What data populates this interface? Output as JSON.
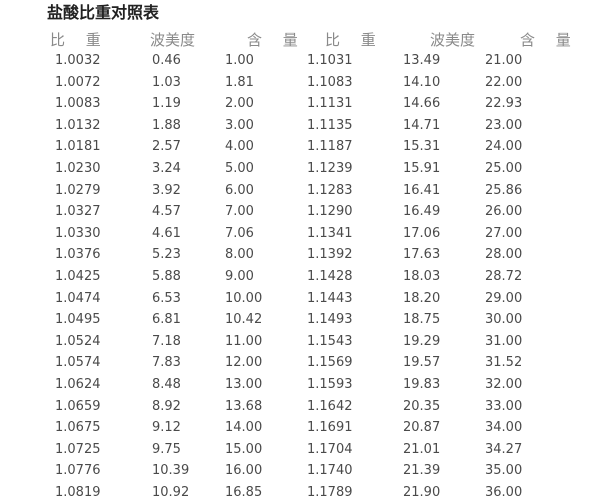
{
  "page": {
    "title": "盐酸比重对照表"
  },
  "table": {
    "headers": [
      "比 重",
      "波美度",
      "含 量",
      "比 重",
      "波美度",
      "含 量"
    ],
    "column_meanings": [
      "specific-gravity",
      "baume-degree",
      "content-percent",
      "specific-gravity",
      "baume-degree",
      "content-percent"
    ],
    "rows": [
      [
        "1.0032",
        "0.46",
        "1.00",
        "1.1031",
        "13.49",
        "21.00"
      ],
      [
        "1.0072",
        "1.03",
        "1.81",
        "1.1083",
        "14.10",
        "22.00"
      ],
      [
        "1.0083",
        "1.19",
        "2.00",
        "1.1131",
        "14.66",
        "22.93"
      ],
      [
        "1.0132",
        "1.88",
        "3.00",
        "1.1135",
        "14.71",
        "23.00"
      ],
      [
        "1.0181",
        "2.57",
        "4.00",
        "1.1187",
        "15.31",
        "24.00"
      ],
      [
        "1.0230",
        "3.24",
        "5.00",
        "1.1239",
        "15.91",
        "25.00"
      ],
      [
        "1.0279",
        "3.92",
        "6.00",
        "1.1283",
        "16.41",
        "25.86"
      ],
      [
        "1.0327",
        "4.57",
        "7.00",
        "1.1290",
        "16.49",
        "26.00"
      ],
      [
        "1.0330",
        "4.61",
        "7.06",
        "1.1341",
        "17.06",
        "27.00"
      ],
      [
        "1.0376",
        "5.23",
        "8.00",
        "1.1392",
        "17.63",
        "28.00"
      ],
      [
        "1.0425",
        "5.88",
        "9.00",
        "1.1428",
        "18.03",
        "28.72"
      ],
      [
        "1.0474",
        "6.53",
        "10.00",
        "1.1443",
        "18.20",
        "29.00"
      ],
      [
        "1.0495",
        "6.81",
        "10.42",
        "1.1493",
        "18.75",
        "30.00"
      ],
      [
        "1.0524",
        "7.18",
        "11.00",
        "1.1543",
        "19.29",
        "31.00"
      ],
      [
        "1.0574",
        "7.83",
        "12.00",
        "1.1569",
        "19.57",
        "31.52"
      ],
      [
        "1.0624",
        "8.48",
        "13.00",
        "1.1593",
        "19.83",
        "32.00"
      ],
      [
        "1.0659",
        "8.92",
        "13.68",
        "1.1642",
        "20.35",
        "33.00"
      ],
      [
        "1.0675",
        "9.12",
        "14.00",
        "1.1691",
        "20.87",
        "34.00"
      ],
      [
        "1.0725",
        "9.75",
        "15.00",
        "1.1704",
        "21.01",
        "34.27"
      ],
      [
        "1.0776",
        "10.39",
        "16.00",
        "1.1740",
        "21.39",
        "35.00"
      ],
      [
        "1.0819",
        "10.92",
        "16.85",
        "1.1789",
        "21.90",
        "36.00"
      ]
    ]
  }
}
